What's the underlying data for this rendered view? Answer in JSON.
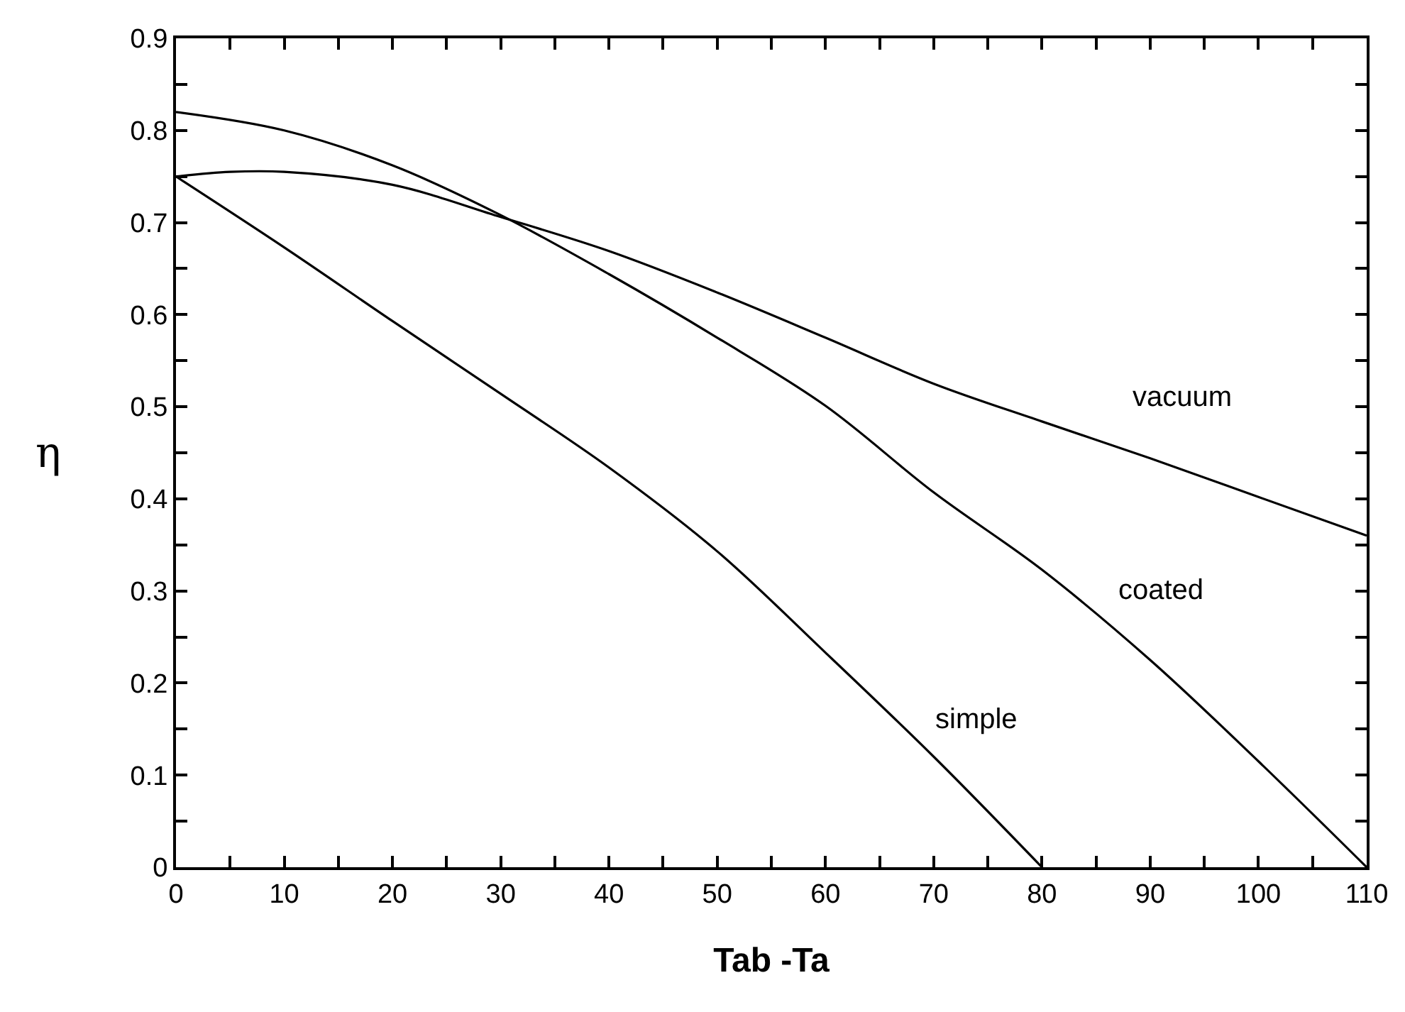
{
  "chart_data": {
    "type": "line",
    "xlabel": "Tab -Ta",
    "ylabel": "η",
    "series": [
      {
        "name": "vacuum",
        "color": "#000000",
        "x": [
          0,
          5,
          10,
          20,
          30,
          40,
          50,
          60,
          70,
          80,
          90,
          100,
          110
        ],
        "values": [
          0.75,
          0.755,
          0.755,
          0.741,
          0.706,
          0.669,
          0.624,
          0.575,
          0.525,
          0.484,
          0.444,
          0.402,
          0.36
        ]
      },
      {
        "name": "coated",
        "color": "#000000",
        "x": [
          0,
          10,
          20,
          30,
          40,
          50,
          60,
          70,
          80,
          90,
          100,
          110
        ],
        "values": [
          0.82,
          0.8,
          0.762,
          0.708,
          0.644,
          0.575,
          0.501,
          0.407,
          0.323,
          0.225,
          0.115,
          0
        ]
      },
      {
        "name": "simple",
        "color": "#000000",
        "x": [
          0,
          10,
          20,
          30,
          40,
          50,
          60,
          70,
          80
        ],
        "values": [
          0.75,
          0.673,
          0.593,
          0.514,
          0.434,
          0.343,
          0.233,
          0.12,
          0
        ]
      }
    ],
    "xlim": [
      0,
      110
    ],
    "ylim": [
      0,
      0.9
    ],
    "xticks": [
      0,
      {
        "value": 5,
        "label": null
      },
      10,
      {
        "value": 15,
        "label": null
      },
      20,
      {
        "value": 25,
        "label": null
      },
      30,
      {
        "value": 35,
        "label": null
      },
      40,
      {
        "value": 45,
        "label": null
      },
      50,
      {
        "value": 55,
        "label": null
      },
      60,
      {
        "value": 65,
        "label": null
      },
      70,
      {
        "value": 75,
        "label": null
      },
      80,
      {
        "value": 85,
        "label": null
      },
      90,
      {
        "value": 95,
        "label": null
      },
      100,
      {
        "value": 105,
        "label": null
      },
      110
    ],
    "yticks": [
      0,
      {
        "value": 0.05,
        "label": null
      },
      0.1,
      {
        "value": 0.15,
        "label": null
      },
      0.2,
      {
        "value": 0.25,
        "label": null
      },
      0.3,
      {
        "value": 0.35,
        "label": null
      },
      0.4,
      {
        "value": 0.45,
        "label": null
      },
      0.5,
      {
        "value": 0.55,
        "label": null
      },
      0.6,
      {
        "value": 0.65,
        "label": null
      },
      0.7,
      {
        "value": 0.75,
        "label": null
      },
      0.8,
      {
        "value": 0.85,
        "label": null
      },
      0.9
    ],
    "legend": false,
    "marker": "none",
    "line_style": "solid"
  }
}
